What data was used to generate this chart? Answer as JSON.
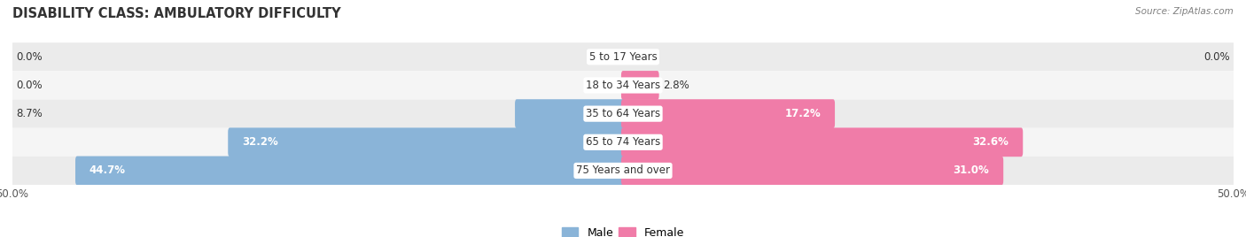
{
  "title": "DISABILITY CLASS: AMBULATORY DIFFICULTY",
  "source": "Source: ZipAtlas.com",
  "categories": [
    "5 to 17 Years",
    "18 to 34 Years",
    "35 to 64 Years",
    "65 to 74 Years",
    "75 Years and over"
  ],
  "male_values": [
    0.0,
    0.0,
    8.7,
    32.2,
    44.7
  ],
  "female_values": [
    0.0,
    2.8,
    17.2,
    32.6,
    31.0
  ],
  "male_color": "#8ab4d8",
  "female_color": "#f07ca8",
  "row_bg_color_odd": "#ebebeb",
  "row_bg_color_even": "#f5f5f5",
  "max_value": 50.0,
  "label_fontsize": 8.5,
  "title_fontsize": 10.5,
  "source_fontsize": 7.5,
  "axis_label_fontsize": 8.5,
  "legend_fontsize": 9
}
